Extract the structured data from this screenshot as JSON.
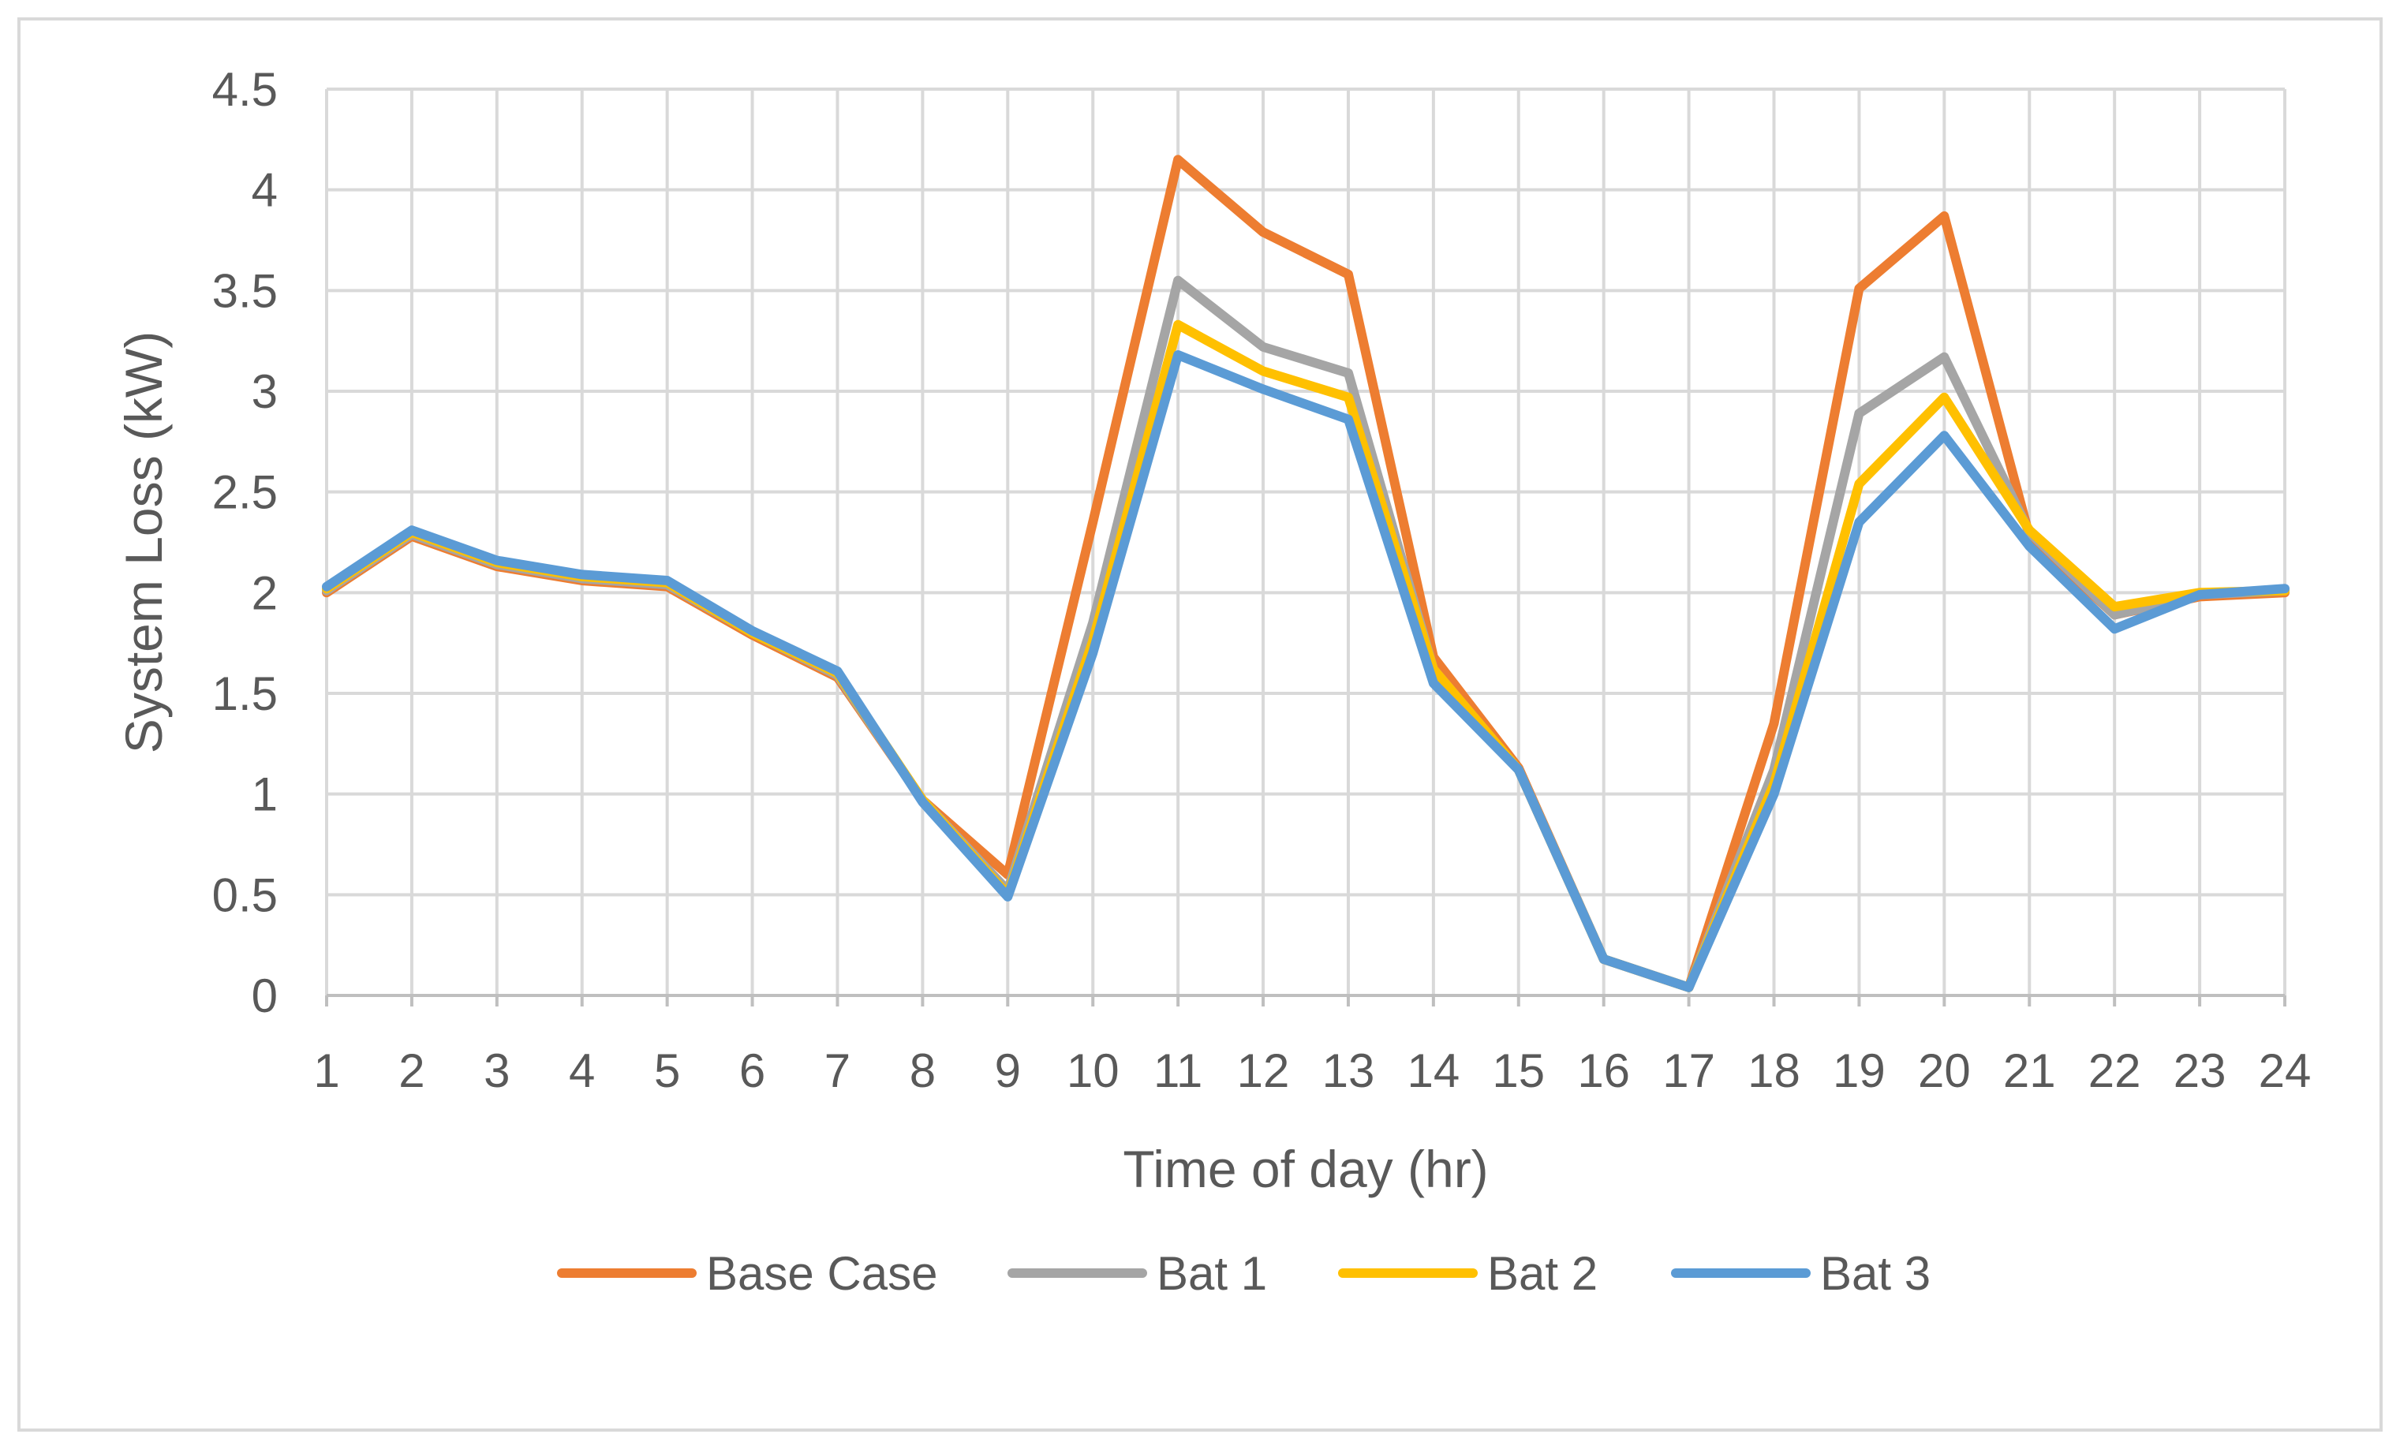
{
  "chart_data": {
    "type": "line",
    "title": "",
    "xlabel": "Time of day (hr)",
    "ylabel": "System Loss (kW)",
    "x": [
      1,
      2,
      3,
      4,
      5,
      6,
      7,
      8,
      9,
      10,
      11,
      12,
      13,
      14,
      15,
      16,
      17,
      18,
      19,
      20,
      21,
      22,
      23,
      24
    ],
    "x_tick_labels": [
      "1",
      "2",
      "3",
      "4",
      "5",
      "6",
      "7",
      "8",
      "9",
      "10",
      "11",
      "12",
      "13",
      "14",
      "15",
      "16",
      "17",
      "18",
      "19",
      "20",
      "21",
      "22",
      "23",
      "24"
    ],
    "ylim": [
      0,
      4.5
    ],
    "y_ticks": [
      0,
      0.5,
      1,
      1.5,
      2,
      2.5,
      3,
      3.5,
      4,
      4.5
    ],
    "y_tick_labels": [
      "0",
      "0.5",
      "1",
      "1.5",
      "2",
      "2.5",
      "3",
      "3.5",
      "4",
      "4.5"
    ],
    "grid": true,
    "legend_position": "bottom",
    "series": [
      {
        "name": "Base Case",
        "color": "#ED7D31",
        "values": [
          2.0,
          2.28,
          2.13,
          2.06,
          2.03,
          1.79,
          1.58,
          0.97,
          0.6,
          2.35,
          4.15,
          3.79,
          3.58,
          1.68,
          1.13,
          0.18,
          0.04,
          1.35,
          3.51,
          3.87,
          2.28,
          1.89,
          1.98,
          2.0
        ]
      },
      {
        "name": "Bat 1",
        "color": "#A5A5A5",
        "values": [
          2.01,
          2.29,
          2.14,
          2.07,
          2.04,
          1.8,
          1.59,
          0.97,
          0.52,
          1.85,
          3.55,
          3.22,
          3.09,
          1.62,
          1.12,
          0.18,
          0.04,
          1.12,
          2.89,
          3.17,
          2.3,
          1.89,
          1.99,
          2.01
        ]
      },
      {
        "name": "Bat 2",
        "color": "#FFC000",
        "values": [
          2.02,
          2.3,
          2.15,
          2.08,
          2.05,
          1.8,
          1.6,
          0.97,
          0.5,
          1.76,
          3.33,
          3.1,
          2.97,
          1.62,
          1.12,
          0.18,
          0.04,
          1.05,
          2.54,
          2.97,
          2.31,
          1.93,
          2.0,
          2.01
        ]
      },
      {
        "name": "Bat 3",
        "color": "#5B9BD5",
        "values": [
          2.03,
          2.31,
          2.16,
          2.09,
          2.06,
          1.81,
          1.61,
          0.96,
          0.49,
          1.7,
          3.18,
          3.01,
          2.86,
          1.55,
          1.12,
          0.18,
          0.04,
          1.0,
          2.35,
          2.78,
          2.23,
          1.82,
          1.99,
          2.02
        ]
      }
    ]
  }
}
